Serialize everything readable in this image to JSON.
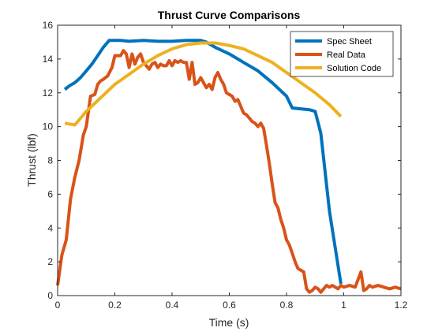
{
  "chart_data": {
    "type": "line",
    "title": "Thrust Curve Comparisons",
    "xlabel": "Time (s)",
    "ylabel": "Thrust (lbf)",
    "xlim": [
      0,
      1.2
    ],
    "ylim": [
      0,
      16
    ],
    "xticks": [
      "0",
      "0.2",
      "0.4",
      "0.6",
      "0.8",
      "1",
      "1.2"
    ],
    "yticks": [
      "0",
      "2",
      "4",
      "6",
      "8",
      "10",
      "12",
      "14",
      "16"
    ],
    "grid": false,
    "legend_position": "top-right",
    "series": [
      {
        "name": "Spec Sheet",
        "color": "#0072BD",
        "x": [
          0.025,
          0.04,
          0.06,
          0.08,
          0.1,
          0.12,
          0.14,
          0.16,
          0.18,
          0.2,
          0.22,
          0.25,
          0.3,
          0.35,
          0.4,
          0.45,
          0.5,
          0.52,
          0.55,
          0.6,
          0.65,
          0.7,
          0.75,
          0.8,
          0.82,
          0.85,
          0.88,
          0.9,
          0.92,
          0.95,
          0.99
        ],
        "y": [
          12.2,
          12.4,
          12.6,
          12.9,
          13.3,
          13.7,
          14.2,
          14.7,
          15.1,
          15.1,
          15.1,
          15.05,
          15.1,
          15.05,
          15.05,
          15.1,
          15.1,
          15.0,
          14.7,
          14.3,
          13.8,
          13.3,
          12.6,
          11.8,
          11.1,
          11.05,
          11.0,
          10.9,
          9.6,
          5.0,
          0.7
        ]
      },
      {
        "name": "Real Data",
        "color": "#D95319",
        "x": [
          0.0,
          0.015,
          0.03,
          0.045,
          0.06,
          0.075,
          0.09,
          0.1,
          0.115,
          0.13,
          0.14,
          0.15,
          0.16,
          0.175,
          0.19,
          0.2,
          0.21,
          0.22,
          0.23,
          0.24,
          0.25,
          0.26,
          0.27,
          0.28,
          0.29,
          0.3,
          0.31,
          0.32,
          0.33,
          0.34,
          0.35,
          0.36,
          0.37,
          0.38,
          0.39,
          0.4,
          0.41,
          0.42,
          0.43,
          0.44,
          0.45,
          0.46,
          0.47,
          0.48,
          0.49,
          0.5,
          0.51,
          0.52,
          0.53,
          0.54,
          0.55,
          0.56,
          0.57,
          0.58,
          0.59,
          0.6,
          0.61,
          0.62,
          0.63,
          0.64,
          0.65,
          0.66,
          0.67,
          0.68,
          0.69,
          0.7,
          0.71,
          0.72,
          0.73,
          0.74,
          0.75,
          0.76,
          0.77,
          0.78,
          0.79,
          0.8,
          0.81,
          0.82,
          0.83,
          0.84,
          0.85,
          0.86,
          0.87,
          0.88,
          0.89,
          0.9,
          0.91,
          0.92,
          0.93,
          0.94,
          0.95,
          0.96,
          0.97,
          0.98,
          0.99,
          1.0,
          1.02,
          1.04,
          1.06,
          1.07,
          1.08,
          1.09,
          1.1,
          1.12,
          1.14,
          1.16,
          1.18,
          1.2
        ],
        "y": [
          0.6,
          2.4,
          3.3,
          5.7,
          7.0,
          8.0,
          9.5,
          10.0,
          11.8,
          11.9,
          12.5,
          12.7,
          12.8,
          13.0,
          13.5,
          14.2,
          14.2,
          14.2,
          14.5,
          14.3,
          13.5,
          14.3,
          13.7,
          14.1,
          14.3,
          13.8,
          13.6,
          13.4,
          13.7,
          13.8,
          13.5,
          13.7,
          13.6,
          13.6,
          13.9,
          13.6,
          13.9,
          13.8,
          13.9,
          13.8,
          13.8,
          12.8,
          13.8,
          12.5,
          12.6,
          12.9,
          12.6,
          12.3,
          12.5,
          12.2,
          12.9,
          13.2,
          12.8,
          12.5,
          12.0,
          11.9,
          11.8,
          11.5,
          11.6,
          11.2,
          10.8,
          10.7,
          10.5,
          10.3,
          10.2,
          10.0,
          10.2,
          9.9,
          8.9,
          7.8,
          6.6,
          5.5,
          5.2,
          4.5,
          4.0,
          3.3,
          3.0,
          2.5,
          2.0,
          1.6,
          1.5,
          1.4,
          0.4,
          0.2,
          0.3,
          0.5,
          0.4,
          0.2,
          0.4,
          0.6,
          0.5,
          0.6,
          0.5,
          0.4,
          0.6,
          0.5,
          0.6,
          0.5,
          1.4,
          0.3,
          0.4,
          0.6,
          0.5,
          0.6,
          0.5,
          0.4,
          0.5,
          0.4
        ]
      },
      {
        "name": "Solution Code",
        "color": "#EDB120",
        "x": [
          0.025,
          0.06,
          0.1,
          0.15,
          0.2,
          0.25,
          0.3,
          0.35,
          0.4,
          0.45,
          0.5,
          0.55,
          0.6,
          0.65,
          0.7,
          0.75,
          0.8,
          0.85,
          0.9,
          0.95,
          0.99
        ],
        "y": [
          10.2,
          10.1,
          10.9,
          11.7,
          12.5,
          13.1,
          13.7,
          14.2,
          14.6,
          14.85,
          14.95,
          14.95,
          14.8,
          14.6,
          14.2,
          13.8,
          13.2,
          12.6,
          12.0,
          11.3,
          10.6
        ]
      }
    ]
  }
}
